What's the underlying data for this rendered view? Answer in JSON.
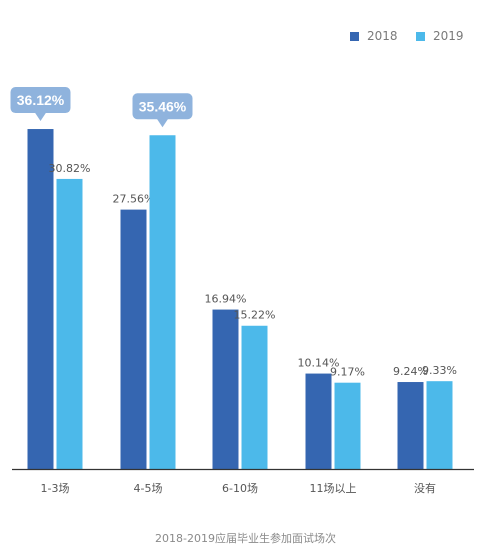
{
  "chart_data": {
    "type": "bar",
    "categories": [
      "1-3场",
      "4-5场",
      "6-10场",
      "11场以上",
      "没有"
    ],
    "series": [
      {
        "name": "2018",
        "values": [
          36.12,
          27.56,
          16.94,
          10.14,
          9.24
        ],
        "labels": [
          "36.12%",
          "27.56%",
          "16.94%",
          "10.14%",
          "9.24%"
        ]
      },
      {
        "name": "2019",
        "values": [
          30.82,
          35.46,
          15.22,
          9.17,
          9.33
        ],
        "labels": [
          "30.82%",
          "35.46%",
          "15.22%",
          "9.17%",
          "9.33%"
        ]
      }
    ],
    "highlights": [
      {
        "series": 0,
        "category": 0
      },
      {
        "series": 1,
        "category": 1
      }
    ],
    "ylim": [
      0,
      40
    ],
    "unit": "%",
    "legend_position": "top-right",
    "grid": false,
    "xlabel": "2018-2019应届毕业生参加面试场次"
  },
  "colors": {
    "series_2018": "#3566b1",
    "series_2019": "#4cb9ea",
    "callout": "#8fb3dd",
    "axis": "#333333",
    "text": "#555555"
  }
}
